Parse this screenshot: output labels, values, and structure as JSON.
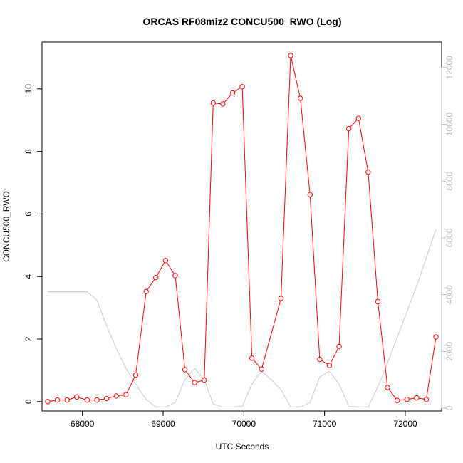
{
  "chart_data": {
    "type": "line",
    "title": "ORCAS RF08miz2 CONCU500_RWO (Log)",
    "xlabel": "UTC Seconds",
    "ylabel": "CONCU500_RWO",
    "xlim": [
      67500,
      72450
    ],
    "ylim": [
      -0.3,
      11.5
    ],
    "y2lim": [
      -100,
      12900
    ],
    "x_ticks": [
      68000,
      69000,
      70000,
      71000,
      72000
    ],
    "y_ticks": [
      0,
      2,
      4,
      6,
      8,
      10
    ],
    "y2_ticks": [
      0,
      2000,
      4000,
      6000,
      8000,
      10000,
      12000
    ],
    "grid": false,
    "series": [
      {
        "axis": "left",
        "color": "#ff0000",
        "marker": "open-circle",
        "x": [
          67570,
          67690,
          67810,
          67930,
          68060,
          68180,
          68300,
          68420,
          68540,
          68660,
          68790,
          68910,
          69030,
          69150,
          69270,
          69390,
          69510,
          69620,
          69740,
          69860,
          69980,
          70100,
          70220,
          70460,
          70580,
          70700,
          70820,
          70940,
          71060,
          71180,
          71300,
          71420,
          71540,
          71660,
          71780,
          71900,
          72020,
          72140,
          72260,
          72380
        ],
        "y": [
          0.0,
          0.05,
          0.05,
          0.15,
          0.05,
          0.05,
          0.1,
          0.18,
          0.22,
          0.85,
          3.52,
          3.97,
          4.51,
          4.03,
          1.02,
          0.61,
          0.69,
          9.55,
          9.52,
          9.87,
          10.07,
          1.39,
          1.04,
          3.3,
          11.07,
          9.7,
          6.62,
          1.35,
          1.16,
          1.76,
          8.73,
          9.06,
          7.34,
          3.2,
          0.45,
          0.04,
          0.07,
          0.12,
          0.07,
          2.07
        ]
      },
      {
        "axis": "right",
        "color": "#c8c8c8",
        "marker": "none",
        "x": [
          67570,
          67800,
          67950,
          68060,
          68180,
          68300,
          68420,
          68540,
          68660,
          68790,
          68910,
          69030,
          69150,
          69270,
          69390,
          69510,
          69620,
          69740,
          69860,
          69980,
          70100,
          70220,
          70340,
          70460,
          70580,
          70700,
          70820,
          70940,
          71060,
          71180,
          71300,
          71420,
          71540,
          71660,
          71780,
          71900,
          72020,
          72140,
          72260,
          72380
        ],
        "y": [
          4100,
          4100,
          4100,
          4100,
          3800,
          2900,
          2100,
          1400,
          850,
          300,
          40,
          40,
          200,
          1000,
          1400,
          1000,
          150,
          40,
          40,
          60,
          850,
          1300,
          1000,
          650,
          40,
          40,
          200,
          1100,
          1300,
          850,
          60,
          40,
          40,
          750,
          1600,
          2500,
          3400,
          4300,
          5300,
          6300
        ]
      }
    ]
  }
}
